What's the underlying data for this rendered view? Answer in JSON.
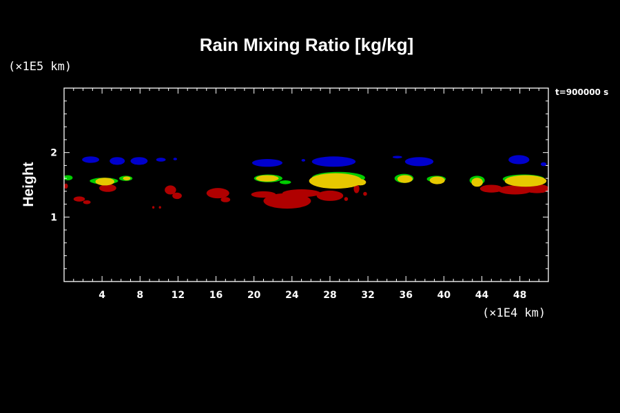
{
  "chart_data": {
    "type": "heatmap",
    "title": "Rain Mixing Ratio [kg/kg]",
    "ylabel": "Height",
    "xunit": "(×1E4 km)",
    "yunit": "(×1E5 km)",
    "time_label": "t=900000 s",
    "xlim": [
      0,
      51
    ],
    "ylim": [
      0,
      3
    ],
    "x_ticks": [
      4,
      8,
      12,
      16,
      20,
      24,
      28,
      32,
      36,
      40,
      44,
      48
    ],
    "y_ticks": [
      1,
      2
    ],
    "colors": {
      "blue": "#0000cc",
      "green": "#00cc00",
      "yellow": "#e6c800",
      "red": "#b00000"
    },
    "blobs": [
      {
        "color": "blue",
        "x": 2.8,
        "y": 1.89,
        "rx": 0.9,
        "ry": 0.05
      },
      {
        "color": "blue",
        "x": 5.6,
        "y": 1.87,
        "rx": 0.8,
        "ry": 0.06
      },
      {
        "color": "blue",
        "x": 7.9,
        "y": 1.87,
        "rx": 0.9,
        "ry": 0.06
      },
      {
        "color": "blue",
        "x": 10.2,
        "y": 1.89,
        "rx": 0.5,
        "ry": 0.03
      },
      {
        "color": "blue",
        "x": 11.7,
        "y": 1.9,
        "rx": 0.2,
        "ry": 0.02
      },
      {
        "color": "blue",
        "x": 21.4,
        "y": 1.84,
        "rx": 1.6,
        "ry": 0.06
      },
      {
        "color": "blue",
        "x": 25.2,
        "y": 1.88,
        "rx": 0.2,
        "ry": 0.02
      },
      {
        "color": "blue",
        "x": 28.4,
        "y": 1.86,
        "rx": 2.3,
        "ry": 0.08
      },
      {
        "color": "blue",
        "x": 35.1,
        "y": 1.93,
        "rx": 0.5,
        "ry": 0.02
      },
      {
        "color": "blue",
        "x": 37.4,
        "y": 1.86,
        "rx": 1.5,
        "ry": 0.07
      },
      {
        "color": "blue",
        "x": 47.9,
        "y": 1.89,
        "rx": 1.1,
        "ry": 0.07
      },
      {
        "color": "blue",
        "x": 50.5,
        "y": 1.82,
        "rx": 0.3,
        "ry": 0.03
      },
      {
        "color": "green",
        "x": 0.4,
        "y": 1.61,
        "rx": 0.5,
        "ry": 0.04
      },
      {
        "color": "green",
        "x": 4.2,
        "y": 1.56,
        "rx": 1.5,
        "ry": 0.05
      },
      {
        "color": "green",
        "x": 6.5,
        "y": 1.6,
        "rx": 0.7,
        "ry": 0.04
      },
      {
        "color": "green",
        "x": 21.5,
        "y": 1.6,
        "rx": 1.5,
        "ry": 0.06
      },
      {
        "color": "green",
        "x": 23.3,
        "y": 1.54,
        "rx": 0.6,
        "ry": 0.03
      },
      {
        "color": "green",
        "x": 28.9,
        "y": 1.61,
        "rx": 2.8,
        "ry": 0.09
      },
      {
        "color": "green",
        "x": 35.8,
        "y": 1.6,
        "rx": 1.0,
        "ry": 0.07
      },
      {
        "color": "green",
        "x": 39.2,
        "y": 1.59,
        "rx": 1.0,
        "ry": 0.05
      },
      {
        "color": "green",
        "x": 43.5,
        "y": 1.57,
        "rx": 0.8,
        "ry": 0.07
      },
      {
        "color": "green",
        "x": 48.4,
        "y": 1.59,
        "rx": 2.2,
        "ry": 0.07
      },
      {
        "color": "yellow",
        "x": 4.3,
        "y": 1.55,
        "rx": 1.0,
        "ry": 0.06
      },
      {
        "color": "yellow",
        "x": 6.6,
        "y": 1.6,
        "rx": 0.4,
        "ry": 0.03
      },
      {
        "color": "yellow",
        "x": 21.4,
        "y": 1.6,
        "rx": 1.2,
        "ry": 0.05
      },
      {
        "color": "yellow",
        "x": 28.6,
        "y": 1.56,
        "rx": 2.8,
        "ry": 0.12
      },
      {
        "color": "yellow",
        "x": 31.2,
        "y": 1.54,
        "rx": 0.6,
        "ry": 0.05
      },
      {
        "color": "yellow",
        "x": 35.9,
        "y": 1.59,
        "rx": 0.8,
        "ry": 0.06
      },
      {
        "color": "yellow",
        "x": 39.3,
        "y": 1.57,
        "rx": 0.8,
        "ry": 0.06
      },
      {
        "color": "yellow",
        "x": 43.5,
        "y": 1.54,
        "rx": 0.6,
        "ry": 0.07
      },
      {
        "color": "yellow",
        "x": 48.6,
        "y": 1.56,
        "rx": 2.2,
        "ry": 0.09
      },
      {
        "color": "red",
        "x": 0.2,
        "y": 1.48,
        "rx": 0.2,
        "ry": 0.04
      },
      {
        "color": "red",
        "x": 1.6,
        "y": 1.28,
        "rx": 0.6,
        "ry": 0.04
      },
      {
        "color": "red",
        "x": 2.4,
        "y": 1.23,
        "rx": 0.4,
        "ry": 0.03
      },
      {
        "color": "red",
        "x": 4.6,
        "y": 1.45,
        "rx": 0.9,
        "ry": 0.06
      },
      {
        "color": "red",
        "x": 9.4,
        "y": 1.15,
        "rx": 0.12,
        "ry": 0.02
      },
      {
        "color": "red",
        "x": 10.1,
        "y": 1.15,
        "rx": 0.12,
        "ry": 0.02
      },
      {
        "color": "red",
        "x": 11.2,
        "y": 1.42,
        "rx": 0.6,
        "ry": 0.07
      },
      {
        "color": "red",
        "x": 11.9,
        "y": 1.33,
        "rx": 0.5,
        "ry": 0.05
      },
      {
        "color": "red",
        "x": 16.2,
        "y": 1.37,
        "rx": 1.2,
        "ry": 0.08
      },
      {
        "color": "red",
        "x": 17.0,
        "y": 1.27,
        "rx": 0.5,
        "ry": 0.04
      },
      {
        "color": "red",
        "x": 21.0,
        "y": 1.35,
        "rx": 1.3,
        "ry": 0.05
      },
      {
        "color": "red",
        "x": 23.5,
        "y": 1.25,
        "rx": 2.5,
        "ry": 0.12
      },
      {
        "color": "red",
        "x": 25.0,
        "y": 1.37,
        "rx": 2.0,
        "ry": 0.06
      },
      {
        "color": "red",
        "x": 28.0,
        "y": 1.33,
        "rx": 1.4,
        "ry": 0.08
      },
      {
        "color": "red",
        "x": 29.7,
        "y": 1.28,
        "rx": 0.2,
        "ry": 0.03
      },
      {
        "color": "red",
        "x": 30.8,
        "y": 1.44,
        "rx": 0.3,
        "ry": 0.07
      },
      {
        "color": "red",
        "x": 31.7,
        "y": 1.36,
        "rx": 0.2,
        "ry": 0.03
      },
      {
        "color": "red",
        "x": 45.0,
        "y": 1.44,
        "rx": 1.2,
        "ry": 0.06
      },
      {
        "color": "red",
        "x": 47.5,
        "y": 1.42,
        "rx": 1.8,
        "ry": 0.07
      },
      {
        "color": "red",
        "x": 49.8,
        "y": 1.44,
        "rx": 1.3,
        "ry": 0.07
      }
    ]
  }
}
